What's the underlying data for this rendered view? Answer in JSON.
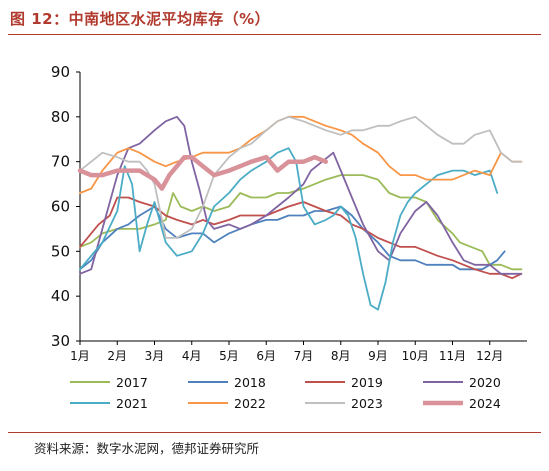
{
  "title": "图 12：中南地区水泥平均库存（%）",
  "source": "资料来源：数字水泥网，德邦证券研究所",
  "chart_data": {
    "type": "line",
    "title": "",
    "xlabel": "",
    "ylabel": "",
    "ylim": [
      30,
      90
    ],
    "yticks": [
      30,
      40,
      50,
      60,
      70,
      80,
      90
    ],
    "xlim": [
      1,
      13
    ],
    "xtick_labels": [
      "1月",
      "2月",
      "3月",
      "4月",
      "5月",
      "6月",
      "7月",
      "8月",
      "9月",
      "10月",
      "11月",
      "12月"
    ],
    "legend_position": "bottom",
    "series": [
      {
        "name": "2017",
        "color": "#9bbb59",
        "width": 1.8,
        "x": [
          1.0,
          1.3,
          1.6,
          2.0,
          2.3,
          2.6,
          3.0,
          3.3,
          3.5,
          3.7,
          4.0,
          4.3,
          4.6,
          5.0,
          5.3,
          5.6,
          6.0,
          6.3,
          6.6,
          7.0,
          7.3,
          7.6,
          8.0,
          8.3,
          8.6,
          9.0,
          9.3,
          9.6,
          10.0,
          10.3,
          10.6,
          11.0,
          11.2,
          11.5,
          11.8,
          12.0,
          12.3,
          12.6,
          12.85
        ],
        "values": [
          51,
          52,
          54,
          55,
          55,
          55,
          56,
          57,
          63,
          60,
          59,
          60,
          59,
          60,
          63,
          62,
          62,
          63,
          63,
          64,
          65,
          66,
          67,
          67,
          67,
          66,
          63,
          62,
          62,
          61,
          57,
          54,
          52,
          51,
          50,
          47,
          47,
          46,
          46
        ]
      },
      {
        "name": "2018",
        "color": "#4f81bd",
        "width": 1.8,
        "x": [
          1.0,
          1.3,
          1.6,
          2.0,
          2.3,
          2.6,
          3.0,
          3.3,
          3.6,
          4.0,
          4.3,
          4.6,
          5.0,
          5.3,
          5.6,
          6.0,
          6.3,
          6.6,
          7.0,
          7.3,
          7.6,
          8.0,
          8.3,
          8.6,
          9.0,
          9.3,
          9.6,
          10.0,
          10.3,
          10.6,
          11.0,
          11.2,
          11.5,
          11.8,
          12.0,
          12.2,
          12.4
        ],
        "values": [
          46,
          48,
          52,
          55,
          56,
          58,
          60,
          55,
          53,
          54,
          54,
          52,
          54,
          55,
          56,
          57,
          57,
          58,
          58,
          59,
          59,
          60,
          58,
          55,
          52,
          49,
          48,
          48,
          47,
          47,
          47,
          46,
          46,
          46,
          47,
          48,
          50
        ]
      },
      {
        "name": "2019",
        "color": "#c0504d",
        "width": 1.8,
        "x": [
          1.0,
          1.2,
          1.5,
          1.8,
          2.0,
          2.3,
          2.6,
          3.0,
          3.3,
          3.6,
          4.0,
          4.3,
          4.6,
          5.0,
          5.3,
          5.6,
          6.0,
          6.3,
          6.6,
          7.0,
          7.3,
          7.6,
          8.0,
          8.3,
          8.6,
          9.0,
          9.3,
          9.6,
          10.0,
          10.3,
          10.6,
          11.0,
          11.3,
          11.6,
          12.0,
          12.3,
          12.6,
          12.85
        ],
        "values": [
          51,
          53,
          56,
          58,
          62,
          62,
          61,
          60,
          58,
          57,
          56,
          57,
          56,
          57,
          58,
          58,
          58,
          59,
          60,
          61,
          60,
          59,
          58,
          56,
          55,
          53,
          52,
          51,
          51,
          50,
          49,
          48,
          47,
          46,
          45,
          45,
          44,
          45
        ]
      },
      {
        "name": "2020",
        "color": "#8064a2",
        "width": 1.8,
        "x": [
          1.0,
          1.3,
          1.6,
          2.0,
          2.3,
          2.6,
          3.0,
          3.3,
          3.6,
          3.8,
          4.0,
          4.2,
          4.4,
          4.6,
          5.0,
          5.3,
          5.6,
          6.0,
          6.3,
          6.6,
          7.0,
          7.2,
          7.5,
          7.8,
          8.0,
          8.3,
          8.6,
          9.0,
          9.3,
          9.6,
          10.0,
          10.3,
          10.6,
          11.0,
          11.3,
          11.6,
          12.0,
          12.3,
          12.5,
          12.85
        ],
        "values": [
          45,
          46,
          55,
          67,
          73,
          74,
          77,
          79,
          80,
          78,
          70,
          64,
          57,
          55,
          56,
          55,
          56,
          58,
          60,
          62,
          65,
          68,
          70,
          72,
          68,
          62,
          56,
          50,
          48,
          54,
          59,
          61,
          58,
          52,
          48,
          47,
          47,
          45,
          45,
          45
        ]
      },
      {
        "name": "2021",
        "color": "#4bacc6",
        "width": 1.8,
        "x": [
          1.0,
          1.3,
          1.6,
          2.0,
          2.2,
          2.4,
          2.6,
          2.8,
          3.0,
          3.3,
          3.6,
          4.0,
          4.3,
          4.6,
          5.0,
          5.3,
          5.6,
          6.0,
          6.3,
          6.6,
          6.8,
          7.0,
          7.3,
          7.6,
          7.8,
          8.0,
          8.2,
          8.4,
          8.6,
          8.8,
          9.0,
          9.2,
          9.4,
          9.6,
          9.8,
          10.0,
          10.3,
          10.6,
          11.0,
          11.3,
          11.6,
          12.0,
          12.2
        ],
        "values": [
          46,
          49,
          52,
          59,
          69,
          65,
          50,
          56,
          61,
          52,
          49,
          50,
          54,
          60,
          63,
          66,
          68,
          70,
          72,
          73,
          70,
          60,
          56,
          57,
          58,
          60,
          58,
          53,
          45,
          38,
          37,
          43,
          52,
          58,
          61,
          63,
          65,
          67,
          68,
          68,
          67,
          68,
          63
        ]
      },
      {
        "name": "2022",
        "color": "#f79646",
        "width": 1.8,
        "x": [
          1.0,
          1.3,
          1.6,
          2.0,
          2.3,
          2.6,
          3.0,
          3.3,
          3.6,
          4.0,
          4.3,
          4.6,
          5.0,
          5.3,
          5.6,
          6.0,
          6.3,
          6.6,
          7.0,
          7.3,
          7.6,
          8.0,
          8.3,
          8.6,
          9.0,
          9.3,
          9.6,
          10.0,
          10.3,
          10.6,
          11.0,
          11.3,
          11.6,
          12.0,
          12.3,
          12.6,
          12.85
        ],
        "values": [
          63,
          64,
          68,
          72,
          73,
          72,
          70,
          69,
          70,
          71,
          72,
          72,
          72,
          73,
          75,
          77,
          79,
          80,
          80,
          79,
          78,
          77,
          76,
          74,
          72,
          69,
          67,
          67,
          66,
          66,
          66,
          67,
          68,
          67,
          72,
          70,
          70
        ]
      },
      {
        "name": "2023",
        "color": "#bfbfbf",
        "width": 1.8,
        "x": [
          1.0,
          1.3,
          1.6,
          2.0,
          2.3,
          2.6,
          2.8,
          3.0,
          3.3,
          3.6,
          4.0,
          4.3,
          4.6,
          5.0,
          5.3,
          5.6,
          6.0,
          6.3,
          6.6,
          7.0,
          7.3,
          7.6,
          8.0,
          8.3,
          8.6,
          9.0,
          9.3,
          9.6,
          10.0,
          10.3,
          10.6,
          11.0,
          11.3,
          11.6,
          12.0,
          12.3,
          12.6,
          12.85
        ],
        "values": [
          68,
          70,
          72,
          71,
          70,
          70,
          68,
          65,
          53,
          53,
          55,
          60,
          67,
          71,
          73,
          74,
          77,
          79,
          80,
          79,
          78,
          77,
          76,
          77,
          77,
          78,
          78,
          79,
          80,
          78,
          76,
          74,
          74,
          76,
          77,
          72,
          70,
          70
        ]
      },
      {
        "name": "2024",
        "color": "#d9929a",
        "width": 4.5,
        "x": [
          1.0,
          1.3,
          1.6,
          2.0,
          2.3,
          2.6,
          3.0,
          3.2,
          3.4,
          3.6,
          3.8,
          4.0,
          4.3,
          4.6,
          5.0,
          5.3,
          5.6,
          6.0,
          6.3,
          6.6,
          7.0,
          7.3,
          7.6
        ],
        "values": [
          68,
          67,
          67,
          68,
          68,
          68,
          66,
          64,
          67,
          69,
          71,
          71,
          69,
          67,
          68,
          69,
          70,
          71,
          68,
          70,
          70,
          71,
          70
        ]
      }
    ]
  }
}
